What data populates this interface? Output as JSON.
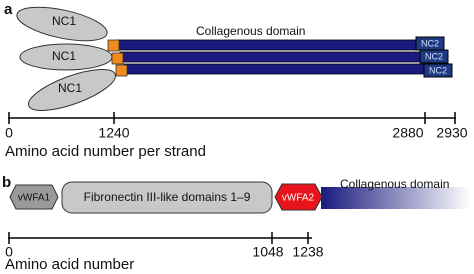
{
  "panels": [
    {
      "label": "a",
      "domain_label": "Collagenous domain",
      "nc1_labels": [
        "NC1",
        "NC1",
        "NC1"
      ],
      "nc2_labels": [
        "NC2",
        "NC2",
        "NC2"
      ],
      "axis_ticks": [
        0,
        1240,
        2880,
        2930
      ],
      "axis_title": "Amino acid number per strand"
    },
    {
      "label": "b",
      "domains": [
        "vWFA1",
        "Fibronectin III-like domains 1–9",
        "vWFA2"
      ],
      "domain_label": "Collagenous domain",
      "axis_ticks": [
        0,
        1048,
        1238
      ],
      "axis_title": "Amino acid number"
    }
  ]
}
